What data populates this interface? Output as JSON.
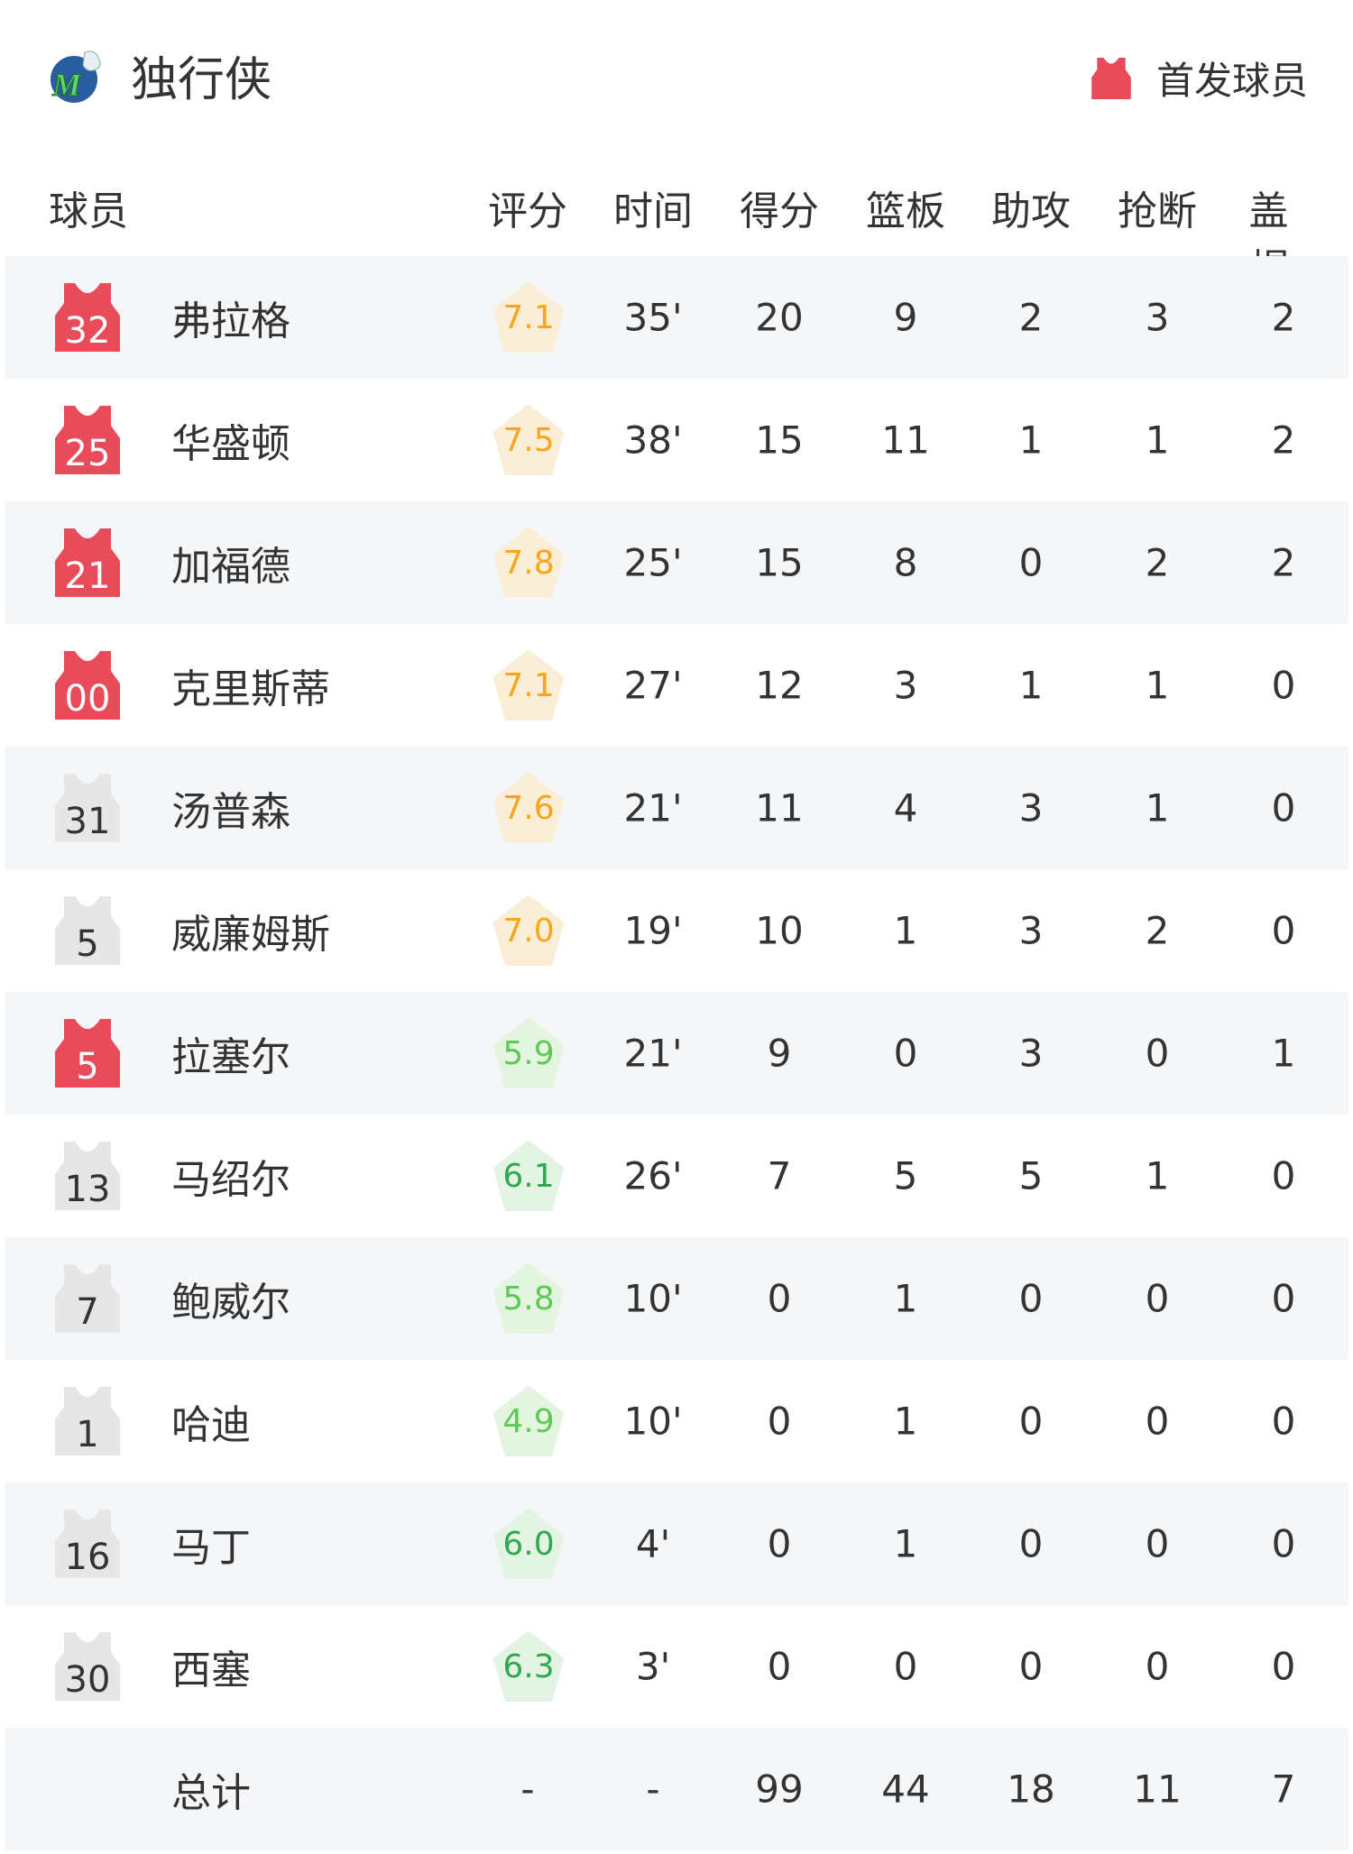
{
  "header": {
    "team_name": "独行侠",
    "team_logo": "mavericks-logo",
    "legend_label": "首发球员",
    "legend_icon": "jersey-icon",
    "starter_color": "#e84c5a",
    "bench_color": "#e6e6e6"
  },
  "columns": [
    "球员",
    "评分",
    "时间",
    "得分",
    "篮板",
    "助攻",
    "抢断",
    "盖帽"
  ],
  "players": [
    {
      "number": "32",
      "name": "弗拉格",
      "starter": true,
      "rating": "7.1",
      "time": "35'",
      "pts": "20",
      "reb": "9",
      "ast": "2",
      "stl": "3",
      "blk": "2"
    },
    {
      "number": "25",
      "name": "华盛顿",
      "starter": true,
      "rating": "7.5",
      "time": "38'",
      "pts": "15",
      "reb": "11",
      "ast": "1",
      "stl": "1",
      "blk": "2"
    },
    {
      "number": "21",
      "name": "加福德",
      "starter": true,
      "rating": "7.8",
      "time": "25'",
      "pts": "15",
      "reb": "8",
      "ast": "0",
      "stl": "2",
      "blk": "2"
    },
    {
      "number": "00",
      "name": "克里斯蒂",
      "starter": true,
      "rating": "7.1",
      "time": "27'",
      "pts": "12",
      "reb": "3",
      "ast": "1",
      "stl": "1",
      "blk": "0"
    },
    {
      "number": "31",
      "name": "汤普森",
      "starter": false,
      "rating": "7.6",
      "time": "21'",
      "pts": "11",
      "reb": "4",
      "ast": "3",
      "stl": "1",
      "blk": "0"
    },
    {
      "number": "5",
      "name": "威廉姆斯",
      "starter": false,
      "rating": "7.0",
      "time": "19'",
      "pts": "10",
      "reb": "1",
      "ast": "3",
      "stl": "2",
      "blk": "0"
    },
    {
      "number": "5",
      "name": "拉塞尔",
      "starter": true,
      "rating": "5.9",
      "time": "21'",
      "pts": "9",
      "reb": "0",
      "ast": "3",
      "stl": "0",
      "blk": "1"
    },
    {
      "number": "13",
      "name": "马绍尔",
      "starter": false,
      "rating": "6.1",
      "time": "26'",
      "pts": "7",
      "reb": "5",
      "ast": "5",
      "stl": "1",
      "blk": "0"
    },
    {
      "number": "7",
      "name": "鲍威尔",
      "starter": false,
      "rating": "5.8",
      "time": "10'",
      "pts": "0",
      "reb": "1",
      "ast": "0",
      "stl": "0",
      "blk": "0"
    },
    {
      "number": "1",
      "name": "哈迪",
      "starter": false,
      "rating": "4.9",
      "time": "10'",
      "pts": "0",
      "reb": "1",
      "ast": "0",
      "stl": "0",
      "blk": "0"
    },
    {
      "number": "16",
      "name": "马丁",
      "starter": false,
      "rating": "6.0",
      "time": "4'",
      "pts": "0",
      "reb": "1",
      "ast": "0",
      "stl": "0",
      "blk": "0"
    },
    {
      "number": "30",
      "name": "西塞",
      "starter": false,
      "rating": "6.3",
      "time": "3'",
      "pts": "0",
      "reb": "0",
      "ast": "0",
      "stl": "0",
      "blk": "0"
    }
  ],
  "totals": {
    "label": "总计",
    "rating": "-",
    "time": "-",
    "pts": "99",
    "reb": "44",
    "ast": "18",
    "stl": "11",
    "blk": "7"
  }
}
